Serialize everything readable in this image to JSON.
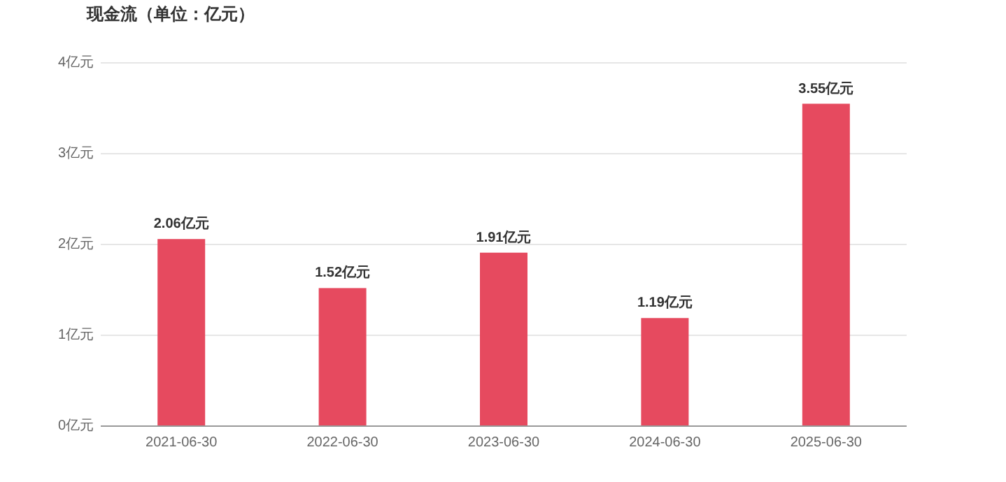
{
  "chart_data": {
    "type": "bar",
    "title": "现金流（单位：亿元）",
    "categories": [
      "2021-06-30",
      "2022-06-30",
      "2023-06-30",
      "2024-06-30",
      "2025-06-30"
    ],
    "values": [
      2.06,
      1.52,
      1.91,
      1.19,
      3.55
    ],
    "color": "#e64a5f",
    "value_labels": [
      "2.06亿元",
      "1.52亿元",
      "1.91亿元",
      "1.19亿元",
      "3.55亿元"
    ],
    "ylim": [
      0,
      4
    ],
    "yticks": [
      {
        "value": 0,
        "label": "0亿元"
      },
      {
        "value": 1,
        "label": "1亿元"
      },
      {
        "value": 2,
        "label": "2亿元"
      },
      {
        "value": 3,
        "label": "3亿元"
      },
      {
        "value": 4,
        "label": "4亿元"
      }
    ],
    "grid": "y"
  }
}
